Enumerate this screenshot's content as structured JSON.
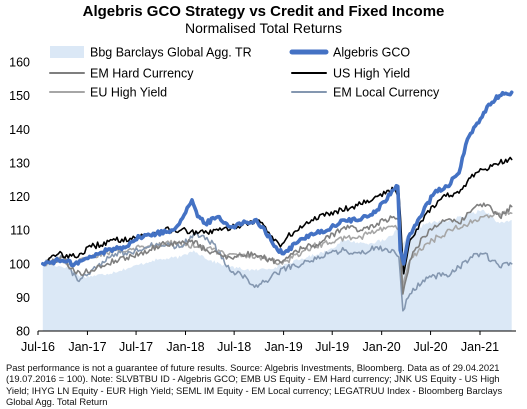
{
  "chart_data": {
    "type": "line",
    "title": "Algebris GCO Strategy vs Credit and Fixed Income",
    "subtitle": "Normalised Total Returns",
    "xlabel": "",
    "ylabel": "",
    "x_start": "2016-07-19",
    "x_end": "2021-04-29",
    "xlim": [
      "2016-07-01",
      "2021-05-15"
    ],
    "ylim": [
      80,
      160
    ],
    "yticks": [
      80,
      90,
      100,
      110,
      120,
      130,
      140,
      150,
      160
    ],
    "xticks": [
      {
        "date": "2016-07-01",
        "label": "Jul-16"
      },
      {
        "date": "2017-01-01",
        "label": "Jan-17"
      },
      {
        "date": "2017-07-01",
        "label": "Jul-17"
      },
      {
        "date": "2018-01-01",
        "label": "Jan-18"
      },
      {
        "date": "2018-07-01",
        "label": "Jul-18"
      },
      {
        "date": "2019-01-01",
        "label": "Jan-19"
      },
      {
        "date": "2019-07-01",
        "label": "Jul-19"
      },
      {
        "date": "2020-01-01",
        "label": "Jan-20"
      },
      {
        "date": "2020-07-01",
        "label": "Jul-20"
      },
      {
        "date": "2021-01-01",
        "label": "Jan-21"
      }
    ],
    "grid": false,
    "legend_position": "top",
    "series": [
      {
        "name": "Bbg Barclays Global Agg. TR",
        "style": "area",
        "color": "#dbe8f6",
        "points": [
          [
            "2016-07-19",
            100
          ],
          [
            "2016-10-15",
            99
          ],
          [
            "2016-12-15",
            96
          ],
          [
            "2017-03-15",
            97
          ],
          [
            "2017-06-15",
            99
          ],
          [
            "2017-09-01",
            101
          ],
          [
            "2017-12-15",
            102
          ],
          [
            "2018-02-01",
            104
          ],
          [
            "2018-04-01",
            101
          ],
          [
            "2018-06-15",
            99
          ],
          [
            "2018-09-15",
            98
          ],
          [
            "2018-12-01",
            99
          ],
          [
            "2019-01-15",
            100
          ],
          [
            "2019-04-01",
            102
          ],
          [
            "2019-06-15",
            104
          ],
          [
            "2019-08-15",
            107
          ],
          [
            "2019-11-01",
            106
          ],
          [
            "2020-01-15",
            107
          ],
          [
            "2020-03-01",
            110
          ],
          [
            "2020-03-20",
            106
          ],
          [
            "2020-04-15",
            109
          ],
          [
            "2020-06-15",
            112
          ],
          [
            "2020-09-15",
            113
          ],
          [
            "2020-12-01",
            115
          ],
          [
            "2021-01-15",
            116
          ],
          [
            "2021-02-15",
            114
          ],
          [
            "2021-03-15",
            112
          ],
          [
            "2021-04-29",
            113
          ]
        ]
      },
      {
        "name": "Algebris  GCO",
        "style": "line",
        "color": "#4472c4",
        "width": 3.6,
        "points": [
          [
            "2016-07-19",
            100
          ],
          [
            "2016-09-15",
            101
          ],
          [
            "2016-11-15",
            100
          ],
          [
            "2017-01-15",
            102
          ],
          [
            "2017-03-15",
            104
          ],
          [
            "2017-05-15",
            105
          ],
          [
            "2017-07-15",
            108
          ],
          [
            "2017-09-15",
            109
          ],
          [
            "2017-11-15",
            110
          ],
          [
            "2017-12-15",
            113
          ],
          [
            "2018-01-25",
            119
          ],
          [
            "2018-02-15",
            114
          ],
          [
            "2018-03-15",
            112
          ],
          [
            "2018-05-01",
            114
          ],
          [
            "2018-06-15",
            111
          ],
          [
            "2018-08-01",
            112
          ],
          [
            "2018-09-15",
            113
          ],
          [
            "2018-10-15",
            111
          ],
          [
            "2018-12-10",
            104
          ],
          [
            "2019-01-01",
            103
          ],
          [
            "2019-02-15",
            106
          ],
          [
            "2019-04-15",
            109
          ],
          [
            "2019-06-15",
            110
          ],
          [
            "2019-08-15",
            113
          ],
          [
            "2019-10-15",
            113
          ],
          [
            "2019-12-15",
            116
          ],
          [
            "2020-02-15",
            122
          ],
          [
            "2020-03-01",
            123
          ],
          [
            "2020-03-10",
            104
          ],
          [
            "2020-03-23",
            100
          ],
          [
            "2020-04-10",
            108
          ],
          [
            "2020-05-15",
            113
          ],
          [
            "2020-07-15",
            121
          ],
          [
            "2020-09-01",
            123
          ],
          [
            "2020-10-15",
            127
          ],
          [
            "2020-11-15",
            137
          ],
          [
            "2020-12-15",
            141
          ],
          [
            "2021-01-15",
            145
          ],
          [
            "2021-02-15",
            148
          ],
          [
            "2021-03-15",
            150
          ],
          [
            "2021-04-29",
            151
          ]
        ]
      },
      {
        "name": "EM Hard Currency",
        "style": "line",
        "color": "#7f7f7f",
        "width": 1.6,
        "points": [
          [
            "2016-07-19",
            100
          ],
          [
            "2016-10-01",
            102
          ],
          [
            "2016-11-20",
            97
          ],
          [
            "2017-01-15",
            98
          ],
          [
            "2017-04-15",
            101
          ],
          [
            "2017-07-15",
            103
          ],
          [
            "2017-10-15",
            106
          ],
          [
            "2017-12-15",
            106
          ],
          [
            "2018-01-25",
            107
          ],
          [
            "2018-03-15",
            104
          ],
          [
            "2018-06-15",
            102
          ],
          [
            "2018-09-15",
            103
          ],
          [
            "2018-11-15",
            101
          ],
          [
            "2018-12-31",
            101
          ],
          [
            "2019-02-15",
            104
          ],
          [
            "2019-05-15",
            106
          ],
          [
            "2019-08-15",
            111
          ],
          [
            "2019-10-15",
            110
          ],
          [
            "2019-12-15",
            112
          ],
          [
            "2020-02-15",
            114
          ],
          [
            "2020-03-05",
            113
          ],
          [
            "2020-03-20",
            91
          ],
          [
            "2020-04-15",
            101
          ],
          [
            "2020-06-01",
            108
          ],
          [
            "2020-08-15",
            113
          ],
          [
            "2020-10-15",
            112
          ],
          [
            "2020-12-15",
            117
          ],
          [
            "2021-01-15",
            118
          ],
          [
            "2021-02-15",
            116
          ],
          [
            "2021-03-15",
            114
          ],
          [
            "2021-04-29",
            117
          ]
        ]
      },
      {
        "name": "US High Yield",
        "style": "line",
        "color": "#000000",
        "width": 1.6,
        "points": [
          [
            "2016-07-19",
            100
          ],
          [
            "2016-09-15",
            103
          ],
          [
            "2016-11-15",
            102
          ],
          [
            "2017-01-15",
            105
          ],
          [
            "2017-04-15",
            107
          ],
          [
            "2017-07-15",
            108
          ],
          [
            "2017-10-15",
            110
          ],
          [
            "2017-12-15",
            110
          ],
          [
            "2018-02-15",
            109
          ],
          [
            "2018-05-15",
            110
          ],
          [
            "2018-08-15",
            112
          ],
          [
            "2018-10-01",
            113
          ],
          [
            "2018-12-20",
            105
          ],
          [
            "2019-01-15",
            108
          ],
          [
            "2019-04-15",
            113
          ],
          [
            "2019-06-15",
            115
          ],
          [
            "2019-09-15",
            117
          ],
          [
            "2019-12-15",
            120
          ],
          [
            "2020-02-15",
            122
          ],
          [
            "2020-03-05",
            121
          ],
          [
            "2020-03-23",
            97
          ],
          [
            "2020-04-15",
            107
          ],
          [
            "2020-06-15",
            115
          ],
          [
            "2020-08-15",
            120
          ],
          [
            "2020-10-15",
            121
          ],
          [
            "2020-12-15",
            127
          ],
          [
            "2021-01-15",
            128
          ],
          [
            "2021-02-15",
            129
          ],
          [
            "2021-03-15",
            130
          ],
          [
            "2021-04-29",
            131
          ]
        ]
      },
      {
        "name": "EU High Yield",
        "style": "line",
        "color": "#a6a6a6",
        "width": 1.6,
        "points": [
          [
            "2016-07-19",
            100
          ],
          [
            "2016-09-15",
            101
          ],
          [
            "2016-11-15",
            100
          ],
          [
            "2017-01-15",
            102
          ],
          [
            "2017-04-15",
            104
          ],
          [
            "2017-07-15",
            105
          ],
          [
            "2017-10-15",
            106
          ],
          [
            "2017-12-15",
            106
          ],
          [
            "2018-02-15",
            105
          ],
          [
            "2018-06-15",
            103
          ],
          [
            "2018-10-15",
            102
          ],
          [
            "2018-12-15",
            100
          ],
          [
            "2019-01-15",
            101
          ],
          [
            "2019-04-15",
            105
          ],
          [
            "2019-07-15",
            107
          ],
          [
            "2019-10-15",
            108
          ],
          [
            "2019-12-15",
            110
          ],
          [
            "2020-02-15",
            111
          ],
          [
            "2020-03-05",
            110
          ],
          [
            "2020-03-20",
            93
          ],
          [
            "2020-04-15",
            101
          ],
          [
            "2020-06-15",
            106
          ],
          [
            "2020-09-15",
            110
          ],
          [
            "2020-12-15",
            113
          ],
          [
            "2021-01-15",
            114
          ],
          [
            "2021-02-15",
            114
          ],
          [
            "2021-03-15",
            115
          ],
          [
            "2021-04-29",
            115
          ]
        ]
      },
      {
        "name": "EM Local Currency",
        "style": "line",
        "color": "#8497b0",
        "width": 1.6,
        "points": [
          [
            "2016-07-19",
            100
          ],
          [
            "2016-10-01",
            102
          ],
          [
            "2016-11-25",
            95
          ],
          [
            "2017-01-15",
            98
          ],
          [
            "2017-04-15",
            103
          ],
          [
            "2017-07-15",
            104
          ],
          [
            "2017-09-15",
            106
          ],
          [
            "2017-12-15",
            105
          ],
          [
            "2018-02-01",
            109
          ],
          [
            "2018-04-15",
            106
          ],
          [
            "2018-06-15",
            98
          ],
          [
            "2018-08-15",
            96
          ],
          [
            "2018-09-15",
            93
          ],
          [
            "2018-11-15",
            96
          ],
          [
            "2019-01-15",
            99
          ],
          [
            "2019-03-15",
            100
          ],
          [
            "2019-06-15",
            103
          ],
          [
            "2019-08-15",
            104
          ],
          [
            "2019-10-15",
            103
          ],
          [
            "2019-12-15",
            105
          ],
          [
            "2020-02-15",
            104
          ],
          [
            "2020-03-05",
            102
          ],
          [
            "2020-03-20",
            86
          ],
          [
            "2020-04-15",
            91
          ],
          [
            "2020-06-15",
            96
          ],
          [
            "2020-09-15",
            97
          ],
          [
            "2020-12-15",
            103
          ],
          [
            "2021-01-15",
            103
          ],
          [
            "2021-02-15",
            101
          ],
          [
            "2021-03-15",
            99
          ],
          [
            "2021-04-29",
            100
          ]
        ]
      }
    ]
  },
  "footnote": "Past performance is not a guarantee of future results. Source: Algebris Investments, Bloomberg. Data as of 29.04.2021 (19.07.2016 = 100). Note: SLVBTBU ID - Algebris GCO; EMB US Equity - EM Hard currency; JNK US Equity - US High Yield; IHYG LN Equity - EUR High Yield; SEML IM Equity - EM Local currency; LEGATRUU Index - Bloomberg Barclays Global Agg. Total Return"
}
